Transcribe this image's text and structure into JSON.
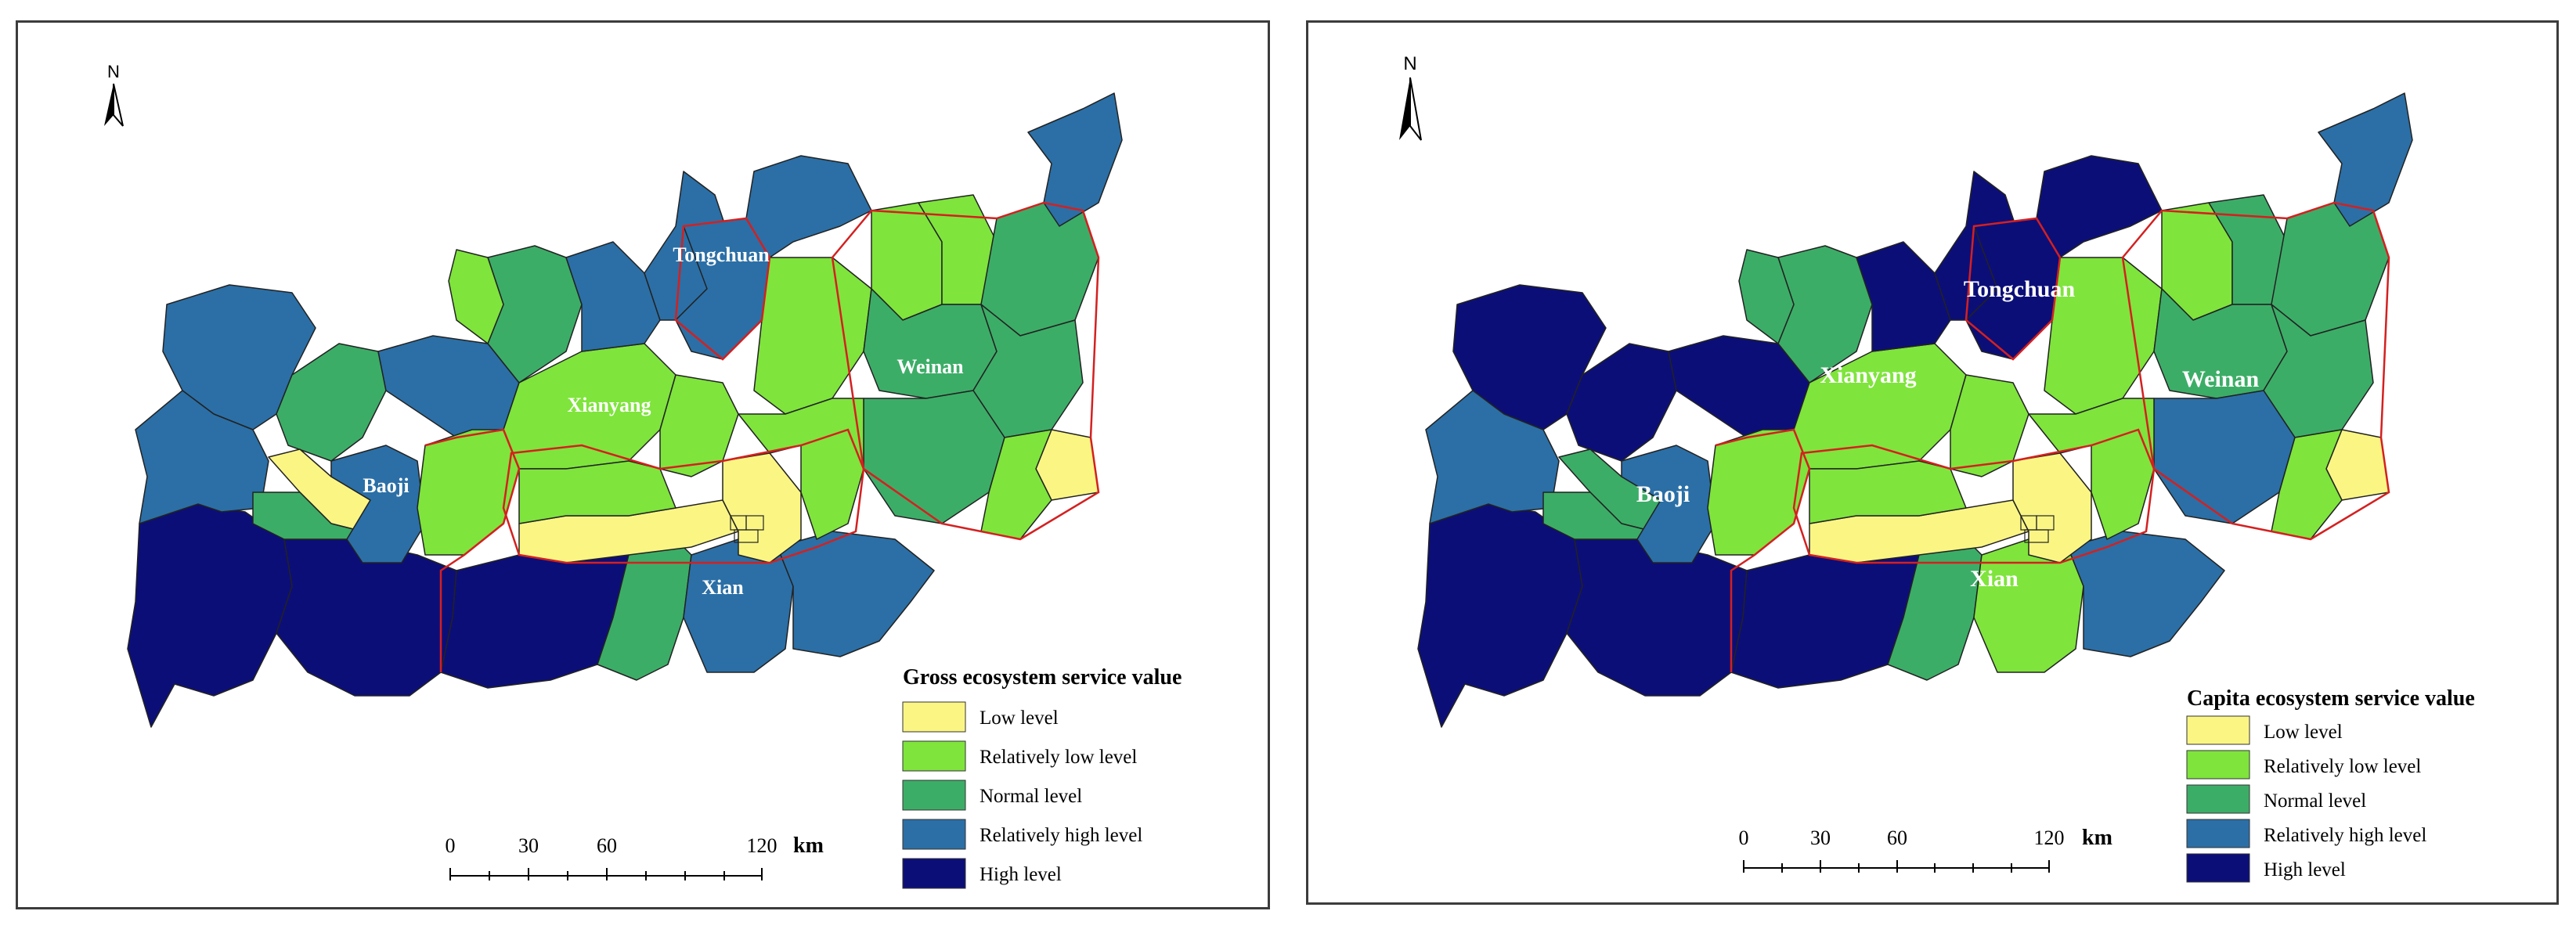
{
  "colors": {
    "low": "#fbf684",
    "relatively_low": "#7fe43c",
    "normal": "#3cad67",
    "relatively_high": "#2b6fa6",
    "high": "#0c0e78",
    "city_border": "#d42020",
    "county_border": "#222222",
    "water": "#ffffff"
  },
  "panels": [
    {
      "north_arrow": {
        "label": "N",
        "icon": "north-arrow-icon"
      },
      "cities": [
        "Tongchuan",
        "Xianyang",
        "Weinan",
        "Baoji",
        "Xian"
      ],
      "legend": {
        "title": "Gross ecosystem service value",
        "items": [
          {
            "label": "Low level",
            "color": "#fbf684"
          },
          {
            "label": "Relatively low level",
            "color": "#7fe43c"
          },
          {
            "label": "Normal level",
            "color": "#3cad67"
          },
          {
            "label": "Relatively high level",
            "color": "#2b6fa6"
          },
          {
            "label": "High level",
            "color": "#0c0e78"
          }
        ]
      },
      "scale_bar": {
        "ticks": [
          "0",
          "30",
          "60",
          "120"
        ],
        "unit": "km"
      },
      "counties": {
        "north_strip": [
          "normal",
          "relatively_high",
          "relatively_high",
          "relatively_high",
          "relatively_low",
          "relatively_low",
          "relatively_low",
          "normal",
          "relatively_high"
        ],
        "west": [
          "relatively_high",
          "normal",
          "relatively_high",
          "relatively_high",
          "low",
          "normal",
          "relatively_high"
        ],
        "central": [
          "relatively_low",
          "relatively_low",
          "relatively_low",
          "low",
          "low",
          "relatively_low",
          "relatively_low"
        ],
        "south": [
          "high",
          "high",
          "high",
          "normal",
          "relatively_high",
          "relatively_high"
        ],
        "east": [
          "relatively_low",
          "normal",
          "normal",
          "normal",
          "low",
          "relatively_low"
        ]
      }
    },
    {
      "north_arrow": {
        "label": "N",
        "icon": "north-arrow-icon"
      },
      "cities": [
        "Tongchuan",
        "Xianyang",
        "Weinan",
        "Baoji",
        "Xian"
      ],
      "legend": {
        "title": "Capita ecosystem service value",
        "items": [
          {
            "label": "Low level",
            "color": "#fbf684"
          },
          {
            "label": "Relatively low level",
            "color": "#7fe43c"
          },
          {
            "label": "Normal level",
            "color": "#3cad67"
          },
          {
            "label": "Relatively high level",
            "color": "#2b6fa6"
          },
          {
            "label": "High level",
            "color": "#0c0e78"
          }
        ]
      },
      "scale_bar": {
        "ticks": [
          "0",
          "30",
          "60",
          "120"
        ],
        "unit": "km"
      },
      "counties": {
        "north_strip": [
          "normal",
          "high",
          "high",
          "high",
          "normal",
          "relatively_low",
          "normal",
          "normal",
          "relatively_high"
        ],
        "west": [
          "high",
          "high",
          "high",
          "relatively_high",
          "normal",
          "normal",
          "relatively_high"
        ],
        "central": [
          "relatively_low",
          "relatively_low",
          "relatively_low",
          "low",
          "low",
          "relatively_low",
          "relatively_low"
        ],
        "south": [
          "high",
          "high",
          "high",
          "normal",
          "relatively_low",
          "relatively_high"
        ],
        "east": [
          "relatively_low",
          "normal",
          "normal",
          "relatively_high",
          "low",
          "relatively_low"
        ]
      }
    }
  ]
}
